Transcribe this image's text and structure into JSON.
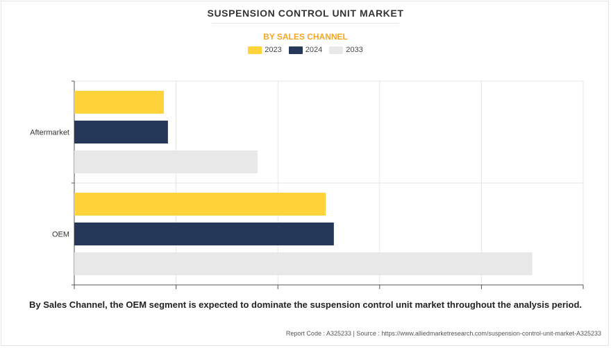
{
  "header": {
    "title": "SUSPENSION CONTROL UNIT MARKET",
    "subtitle": "BY SALES CHANNEL"
  },
  "legend": [
    {
      "label": "2023",
      "color": "#FFD43B"
    },
    {
      "label": "2024",
      "color": "#263859"
    },
    {
      "label": "2033",
      "color": "#E8E8E8"
    }
  ],
  "chart_data": {
    "type": "bar",
    "orientation": "horizontal",
    "categories": [
      "Aftermarket",
      "OEM"
    ],
    "series": [
      {
        "name": "2023",
        "color": "#FFD43B",
        "values": [
          0.88,
          2.47
        ]
      },
      {
        "name": "2024",
        "color": "#263859",
        "values": [
          0.92,
          2.55
        ]
      },
      {
        "name": "2033",
        "color": "#E8E8E8",
        "values": [
          1.8,
          4.5
        ]
      }
    ],
    "xlim": [
      0,
      5
    ],
    "grid": true,
    "legend_position": "top-center",
    "value_labels_shown": false
  },
  "caption": "By Sales Channel, the OEM segment is expected to dominate the suspension control unit market throughout the analysis period.",
  "footer": "Report Code : A325233  |  Source : https://www.alliedmarketresearch.com/suspension-control-unit-market-A325233"
}
